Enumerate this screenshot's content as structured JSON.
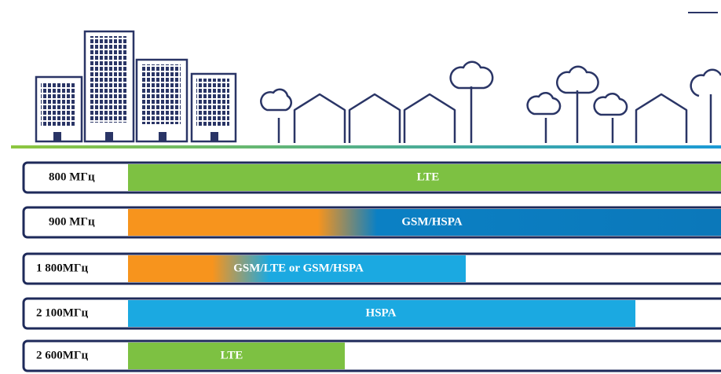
{
  "rows": [
    {
      "band": "800 МГц",
      "technology": "LTE"
    },
    {
      "band": "900 МГц",
      "technology": "GSM/HSPA"
    },
    {
      "band": "1 800МГц",
      "technology": "GSM/LTE or GSM/HSPA"
    },
    {
      "band": "2 100МГц",
      "technology": "HSPA"
    },
    {
      "band": "2 600МГц",
      "technology": "LTE"
    }
  ]
}
